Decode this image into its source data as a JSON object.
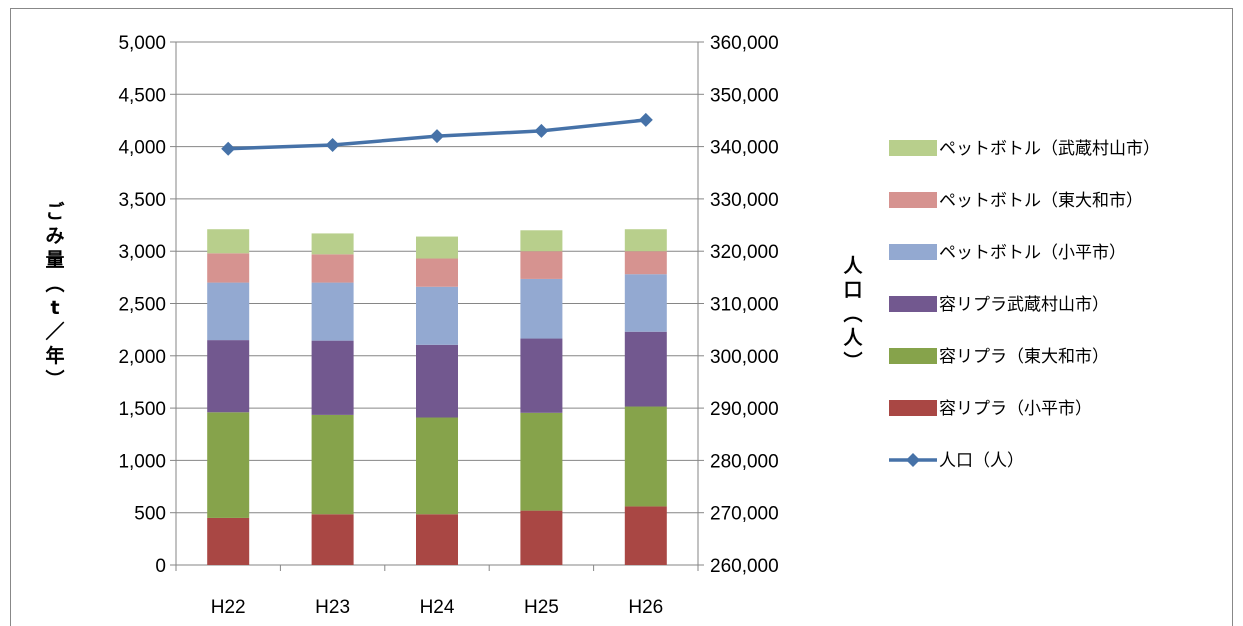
{
  "chart_data": {
    "type": "bar",
    "categories": [
      "H22",
      "H23",
      "H24",
      "H25",
      "H26"
    ],
    "stacked_series": [
      {
        "name": "容リプラ（小平市）",
        "color": "#a94744",
        "values": [
          450,
          485,
          485,
          520,
          560
        ]
      },
      {
        "name": "容リプラ（東大和市）",
        "color": "#86a34b",
        "values": [
          1010,
          950,
          925,
          935,
          955
        ]
      },
      {
        "name": "容リプラ武蔵村山市）",
        "color": "#72588f",
        "values": [
          690,
          710,
          695,
          710,
          715
        ]
      },
      {
        "name": "ペットボトル（小平市）",
        "color": "#93a9d1",
        "values": [
          550,
          555,
          555,
          570,
          550
        ]
      },
      {
        "name": "ペットボトル（東大和市）",
        "color": "#d69390",
        "values": [
          280,
          270,
          270,
          265,
          220
        ]
      },
      {
        "name": "ペットボトル（武蔵村山市）",
        "color": "#b8cf8c",
        "values": [
          230,
          200,
          210,
          200,
          210
        ]
      }
    ],
    "line_series": {
      "name": "人口（人）",
      "color": "#4672a8",
      "axis": "right",
      "values": [
        339600,
        340300,
        342000,
        343000,
        345100
      ]
    },
    "left_axis": {
      "ylim": [
        0,
        5000
      ],
      "ticks": [
        "0",
        "500",
        "1,000",
        "1,500",
        "2,000",
        "2,500",
        "3,000",
        "3,500",
        "4,000",
        "4,500",
        "5,000"
      ],
      "label_chars": [
        "ご",
        "み",
        "量",
        "︵",
        "t",
        "／",
        "年",
        "︶"
      ]
    },
    "right_axis": {
      "ylim": [
        260000,
        360000
      ],
      "ticks": [
        "260,000",
        "270,000",
        "280,000",
        "290,000",
        "300,000",
        "310,000",
        "320,000",
        "330,000",
        "340,000",
        "350,000",
        "360,000"
      ],
      "label_chars": [
        "人",
        "口",
        "︵",
        "人",
        "︶"
      ]
    },
    "legend_order": [
      "ペットボトル（武蔵村山市）",
      "ペットボトル（東大和市）",
      "ペットボトル（小平市）",
      "容リプラ武蔵村山市）",
      "容リプラ（東大和市）",
      "容リプラ（小平市）",
      "人口（人）"
    ],
    "legend_placement": "right",
    "grid": true
  }
}
